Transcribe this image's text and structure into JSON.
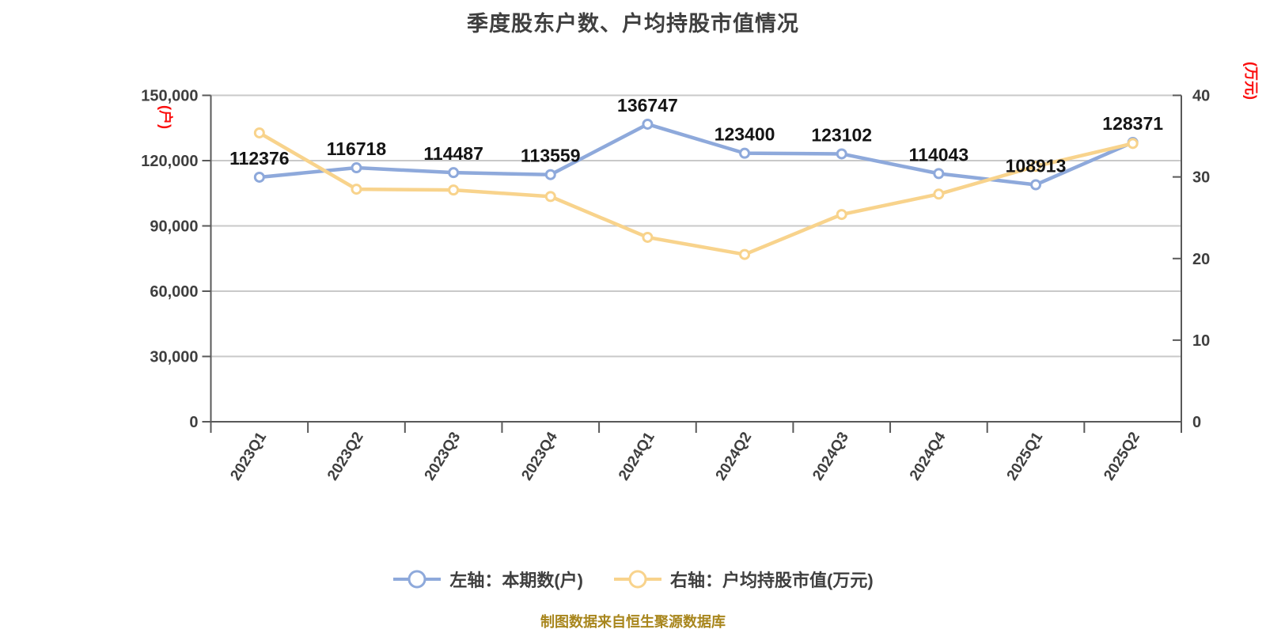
{
  "title": "季度股东户数、户均持股市值情况",
  "footer": "制图数据来自恒生聚源数据库",
  "legend": [
    {
      "label": "左轴：本期数(户)",
      "color": "#8EA9DB"
    },
    {
      "label": "右轴：户均持股市值(万元)",
      "color": "#F8D38C"
    }
  ],
  "chart_data": {
    "type": "line",
    "categories": [
      "2023Q1",
      "2023Q2",
      "2023Q3",
      "2023Q4",
      "2024Q1",
      "2024Q2",
      "2024Q3",
      "2024Q4",
      "2025Q1",
      "2025Q2"
    ],
    "series": [
      {
        "name": "左轴：本期数(户)",
        "axis": "left",
        "color": "#8EA9DB",
        "values": [
          112376,
          116718,
          114487,
          113559,
          136747,
          123400,
          123102,
          114043,
          108913,
          128371
        ],
        "data_labels_shown": true
      },
      {
        "name": "右轴：户均持股市值(万元)",
        "axis": "right",
        "color": "#F8D38C",
        "values": [
          35.4,
          28.5,
          28.4,
          27.6,
          22.6,
          20.5,
          25.4,
          27.9,
          31.3,
          34.1
        ],
        "data_labels_shown": false
      }
    ],
    "left_axis": {
      "unit": "(户)",
      "min": 0,
      "max": 150000,
      "ticks": [
        0,
        30000,
        60000,
        90000,
        120000,
        150000
      ]
    },
    "right_axis": {
      "unit": "(万元)",
      "min": 0,
      "max": 40,
      "ticks": [
        0,
        10,
        20,
        30,
        40
      ]
    },
    "grid": true,
    "legend_position": "bottom",
    "marker": "circle"
  },
  "colors": {
    "axis_line": "#595959",
    "grid_line": "#c9c9c9",
    "tick_label": "#3f3f3f",
    "data_label": "#141414",
    "axis_unit_red": "#fb0d0d",
    "footer_gold": "#a8861d",
    "title_gray": "#3f3f3f",
    "marker_fill": "#ffffff"
  }
}
